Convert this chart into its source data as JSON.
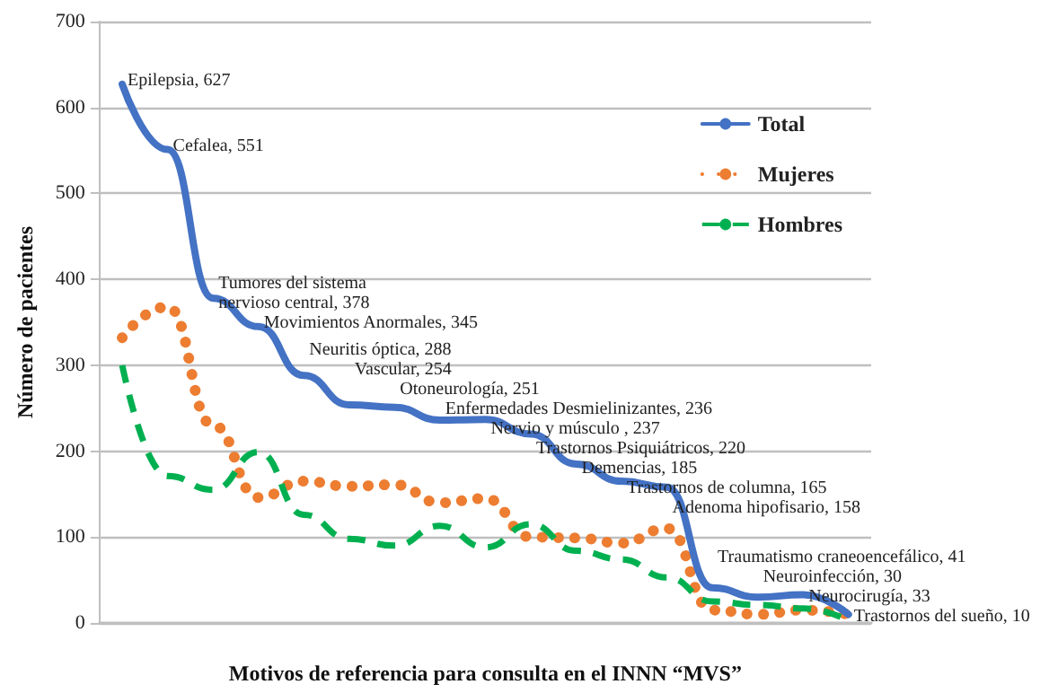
{
  "chart_data": {
    "type": "line",
    "xlabel": "Motivos de referencia para consulta en el INNN “MVS”",
    "ylabel": "Número de pacientes",
    "categories": [
      null,
      null,
      null,
      null,
      null,
      null,
      null,
      null,
      null,
      null,
      null,
      null,
      null,
      null,
      null,
      null,
      null
    ],
    "series": [
      {
        "name": "Total",
        "color": "#4472c4",
        "line_style": "solid",
        "values": [
          627,
          551,
          378,
          345,
          288,
          254,
          251,
          236,
          237,
          220,
          185,
          165,
          158,
          41,
          30,
          33,
          10
        ],
        "value_labels": [
          "Epilepsia, 627",
          "Cefalea, 551",
          "Tumores del sistema\nnervioso central, 378",
          "Movimientos Anormales, 345",
          "Neuritis óptica, 288",
          "Vascular, 254",
          "Otoneurología, 251",
          "Enfermedades Desmielinizantes, 236",
          "Nervio y músculo , 237",
          "Trastornos Psiquiátricos, 220",
          "Demencias, 185",
          "Trastornos de columna, 165",
          "Adenoma hipofisario, 158",
          "Traumatismo craneoencefálico, 41",
          "Neuroinfección, 30",
          "Neurocirugía, 33",
          "Trastornos del sueño, 10"
        ]
      },
      {
        "name": "Mujeres",
        "color": "#ed7d31",
        "line_style": "dotted",
        "values": [
          332,
          368,
          230,
          146,
          165,
          159,
          161,
          140,
          145,
          100,
          99,
          93,
          110,
          15,
          10,
          15,
          10
        ]
      },
      {
        "name": "Hombres",
        "color": "#00b050",
        "line_style": "dashed",
        "values": [
          300,
          171,
          155,
          199,
          126,
          98,
          90,
          113,
          88,
          115,
          84,
          74,
          53,
          25,
          21,
          17,
          3
        ]
      }
    ],
    "ylim": [
      0,
      700
    ],
    "yticks": [
      0,
      100,
      200,
      300,
      400,
      500,
      600,
      700
    ],
    "grid": "y",
    "legend": "right",
    "tick_labels": "y",
    "marker": "none"
  }
}
